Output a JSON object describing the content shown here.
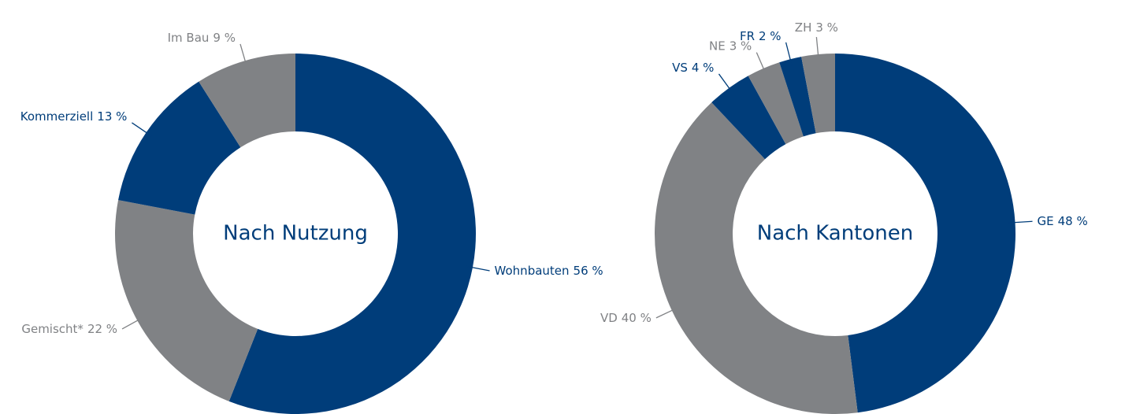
{
  "chart_data": [
    {
      "type": "pie",
      "title": "Nach Nutzung",
      "categories": [
        "Wohnbauten",
        "Gemischt*",
        "Kommerziell",
        "Im Bau"
      ],
      "values": [
        56,
        22,
        13,
        9
      ],
      "value_labels": [
        "56 %",
        "22 %",
        "13 %",
        "9 %"
      ],
      "colors": [
        "#003d7a",
        "#808285",
        "#003d7a",
        "#808285"
      ]
    },
    {
      "type": "pie",
      "title": "Nach Kantonen",
      "categories": [
        "GE",
        "VD",
        "VS",
        "NE",
        "FR",
        "ZH"
      ],
      "values": [
        48,
        40,
        4,
        3,
        2,
        3
      ],
      "value_labels": [
        "48 %",
        "40 %",
        "4 %",
        "3 %",
        "2 %",
        "3 %"
      ],
      "colors": [
        "#003d7a",
        "#808285",
        "#003d7a",
        "#808285",
        "#003d7a",
        "#808285"
      ]
    }
  ]
}
